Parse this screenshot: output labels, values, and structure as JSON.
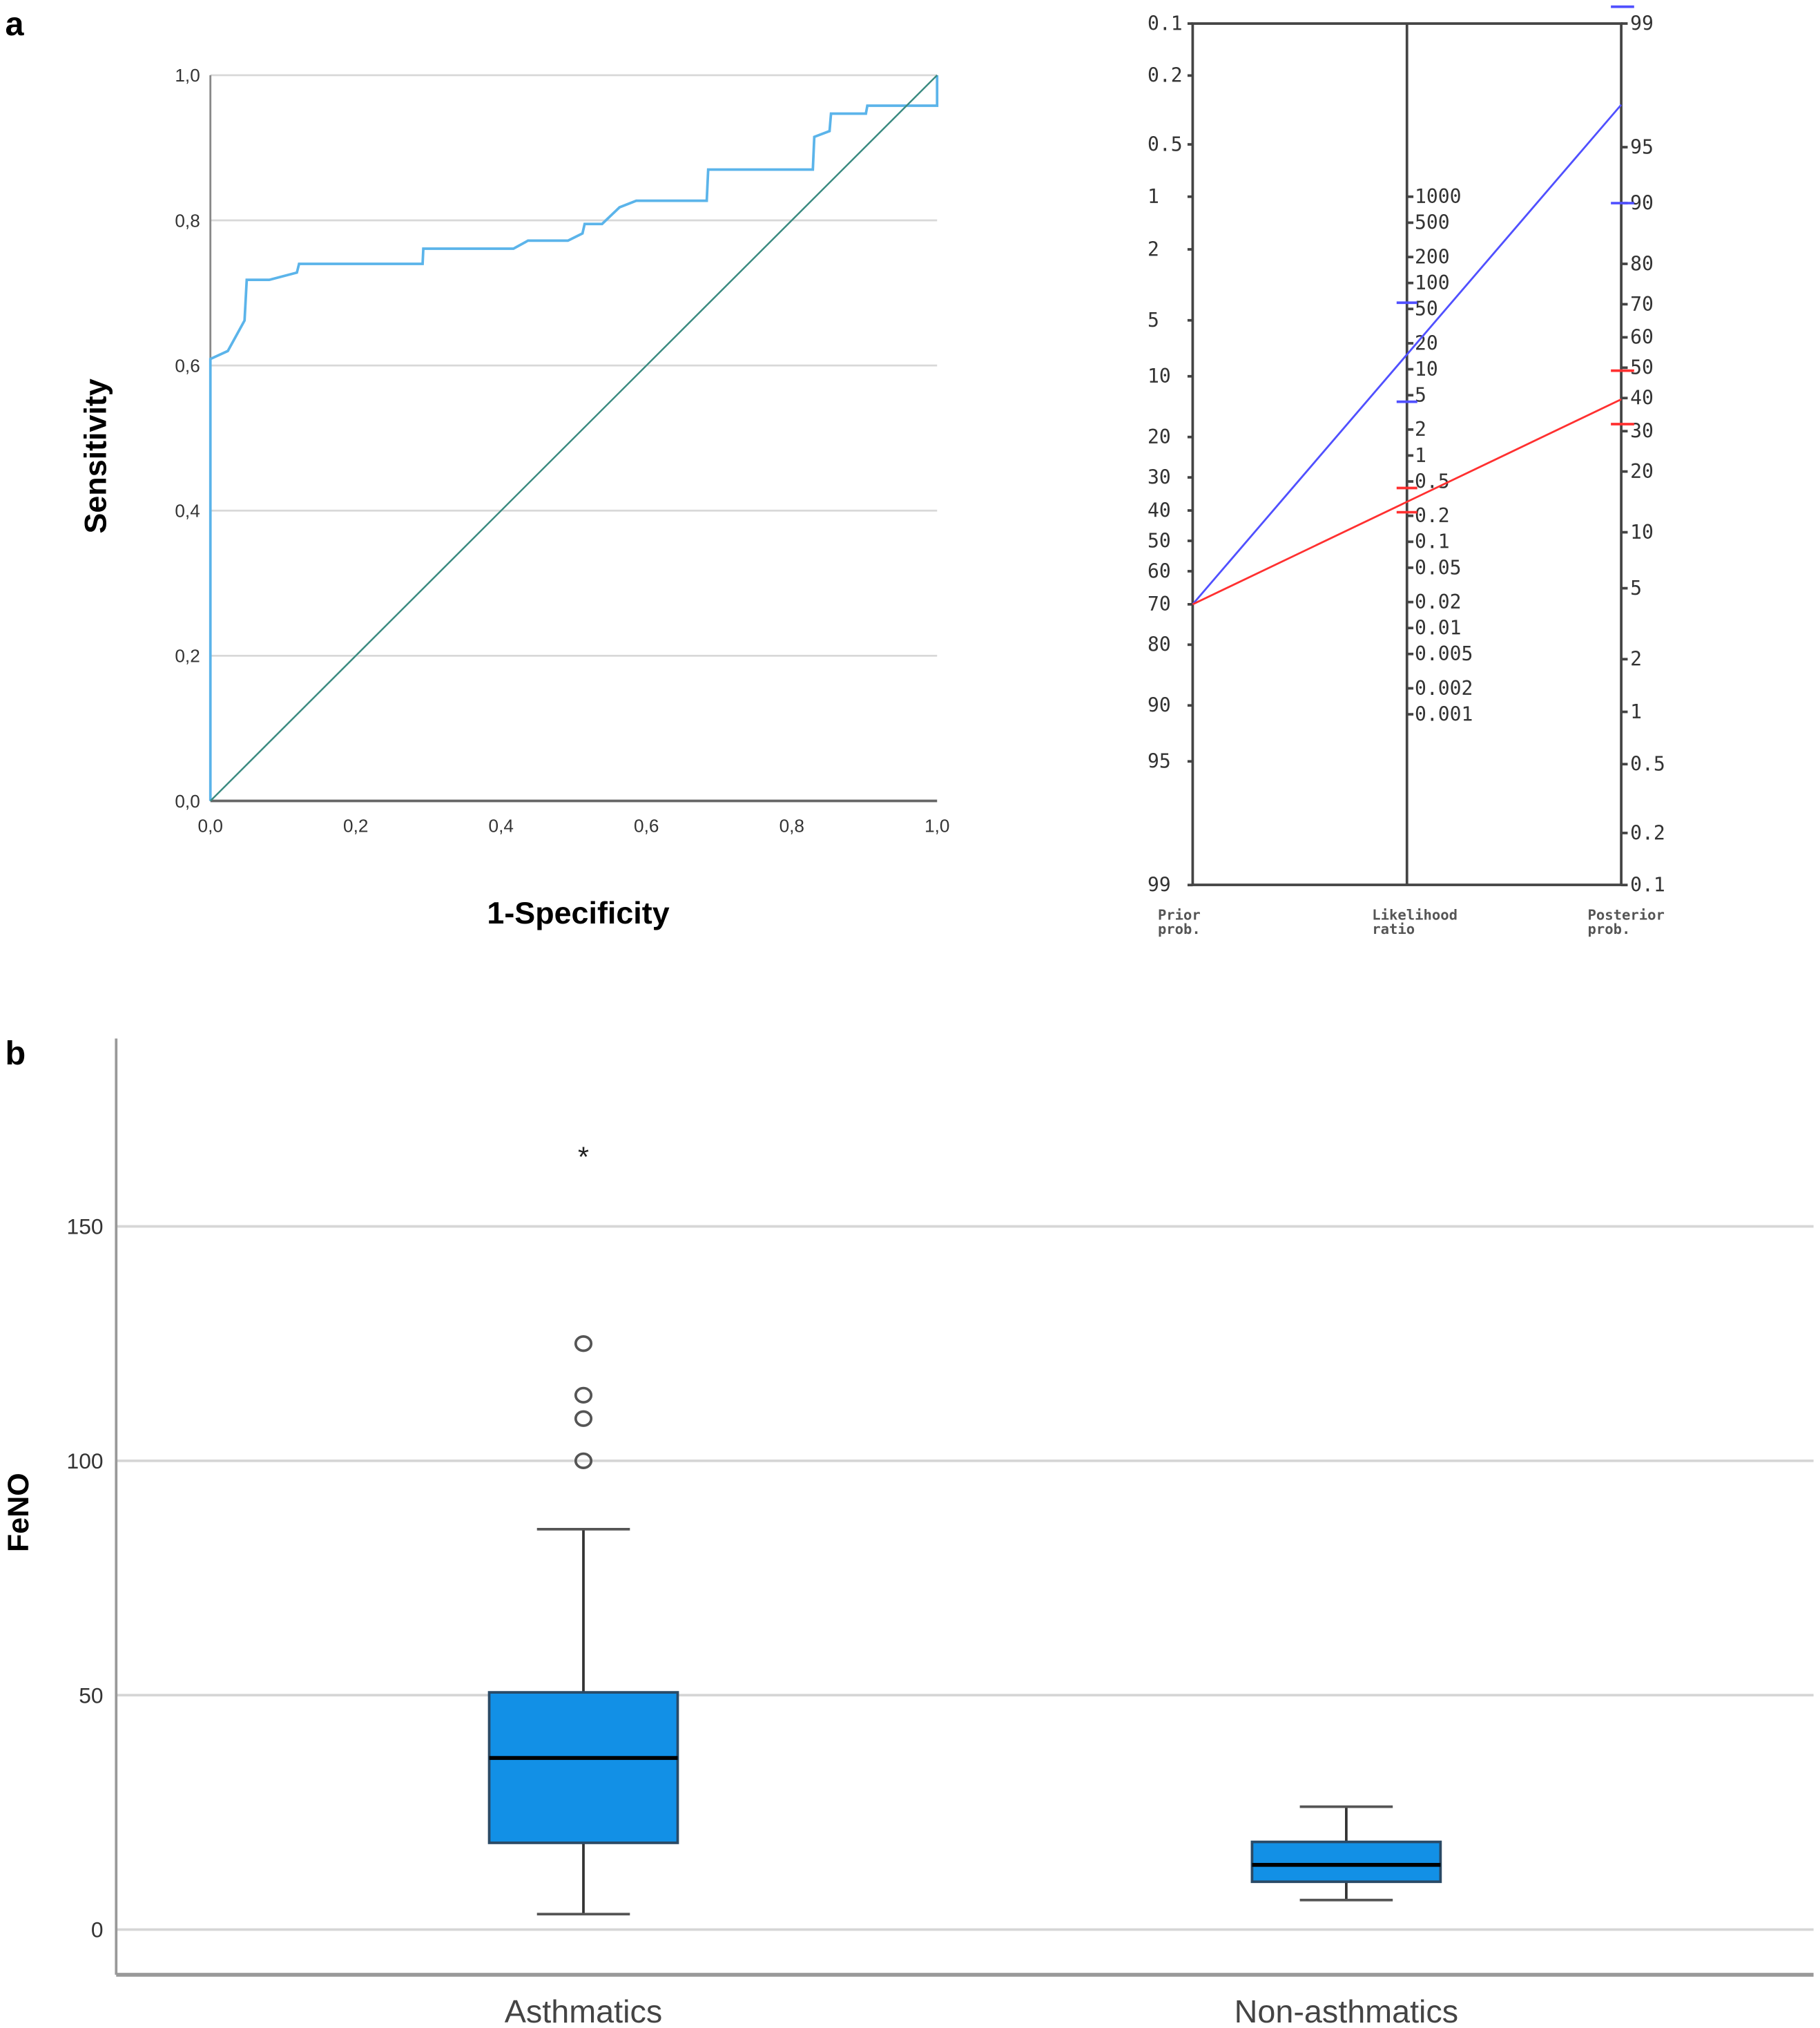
{
  "panel_labels": {
    "a": "a",
    "b": "b"
  },
  "chart_data": [
    {
      "type": "line",
      "name": "roc",
      "xlabel": "1-Specificity",
      "ylabel": "Sensitivity",
      "xlim": [
        0,
        1
      ],
      "ylim": [
        0,
        1
      ],
      "grid": "horizontal",
      "x_ticks": [
        "0,0",
        "0,2",
        "0,4",
        "0,6",
        "0,8",
        "1,0"
      ],
      "y_ticks": [
        "0,0",
        "0,2",
        "0,4",
        "0,6",
        "0,8",
        "1,0"
      ],
      "colors": {
        "curve": "#5bb4ea",
        "reference": "#3a8a80"
      },
      "series": [
        {
          "values_xy": [
            [
              0,
              0
            ],
            [
              0,
              0.609
            ],
            [
              0.024,
              0.62
            ],
            [
              0.047,
              0.662
            ],
            [
              0.05,
              0.718
            ],
            [
              0.081,
              0.718
            ],
            [
              0.119,
              0.728
            ],
            [
              0.122,
              0.74
            ],
            [
              0.292,
              0.74
            ],
            [
              0.293,
              0.761
            ],
            [
              0.417,
              0.761
            ],
            [
              0.437,
              0.772
            ],
            [
              0.492,
              0.772
            ],
            [
              0.512,
              0.782
            ],
            [
              0.515,
              0.795
            ],
            [
              0.539,
              0.795
            ],
            [
              0.563,
              0.818
            ],
            [
              0.586,
              0.827
            ],
            [
              0.683,
              0.827
            ],
            [
              0.685,
              0.87
            ],
            [
              0.829,
              0.87
            ],
            [
              0.831,
              0.915
            ],
            [
              0.852,
              0.923
            ],
            [
              0.854,
              0.947
            ],
            [
              0.902,
              0.947
            ],
            [
              0.904,
              0.958
            ],
            [
              1,
              0.958
            ],
            [
              1,
              1
            ]
          ]
        },
        {
          "values_xy": [
            [
              0,
              0
            ],
            [
              1,
              1
            ]
          ]
        }
      ]
    },
    {
      "type": "line",
      "name": "fagan-nomogram",
      "axis_labels": {
        "prior": [
          "Prior",
          "prob."
        ],
        "lr": [
          "Likelihood",
          "ratio"
        ],
        "posterior": [
          "Posterior",
          "prob."
        ]
      },
      "prior_ticks": [
        "0.1",
        "0.2",
        "0.5",
        "1",
        "2",
        "5",
        "10",
        "20",
        "30",
        "40",
        "50",
        "60",
        "70",
        "80",
        "90",
        "95",
        "99"
      ],
      "lr_ticks": [
        "1000",
        "500",
        "200",
        "100",
        "50",
        "20",
        "10",
        "5",
        "2",
        "1",
        "0.5",
        "0.2",
        "0.1",
        "0.05",
        "0.02",
        "0.01",
        "0.005",
        "0.002",
        "0.001"
      ],
      "posterior_ticks": [
        "99",
        "95",
        "90",
        "80",
        "70",
        "60",
        "50",
        "40",
        "30",
        "20",
        "10",
        "5",
        "2",
        "1",
        "0.5",
        "0.2",
        "0.1"
      ],
      "series": [
        {
          "color": "#5050ff",
          "prior": 70,
          "lr": 16.6,
          "posterior": 97.1,
          "lr_ci": [
            4.2,
            59
          ],
          "posterior_ci": [
            90,
            99.6
          ]
        },
        {
          "color": "#ff3030",
          "prior": 70,
          "lr": 0.32,
          "posterior": 39.6,
          "lr_ci": [
            0.22,
            0.42
          ],
          "posterior_ci": [
            32,
            49
          ]
        }
      ]
    },
    {
      "type": "box",
      "name": "feno-boxplot",
      "ylabel": "FeNO",
      "ylim": [
        -10,
        190
      ],
      "y_ticks": [
        0,
        50,
        100,
        150
      ],
      "grid": "horizontal",
      "categories": [
        "Asthmatics",
        "Non-asthmatics"
      ],
      "box_color": "#1290e6",
      "boxes": [
        {
          "min": 3.3,
          "q1": 18.5,
          "median": 36.6,
          "q3": 50.6,
          "max": 85.4,
          "outliers": [
            100,
            109,
            114,
            125
          ],
          "extremes": [
            165
          ]
        },
        {
          "min": 6.3,
          "q1": 10.2,
          "median": 13.8,
          "q3": 18.7,
          "max": 26.2,
          "outliers": [],
          "extremes": []
        }
      ]
    }
  ]
}
